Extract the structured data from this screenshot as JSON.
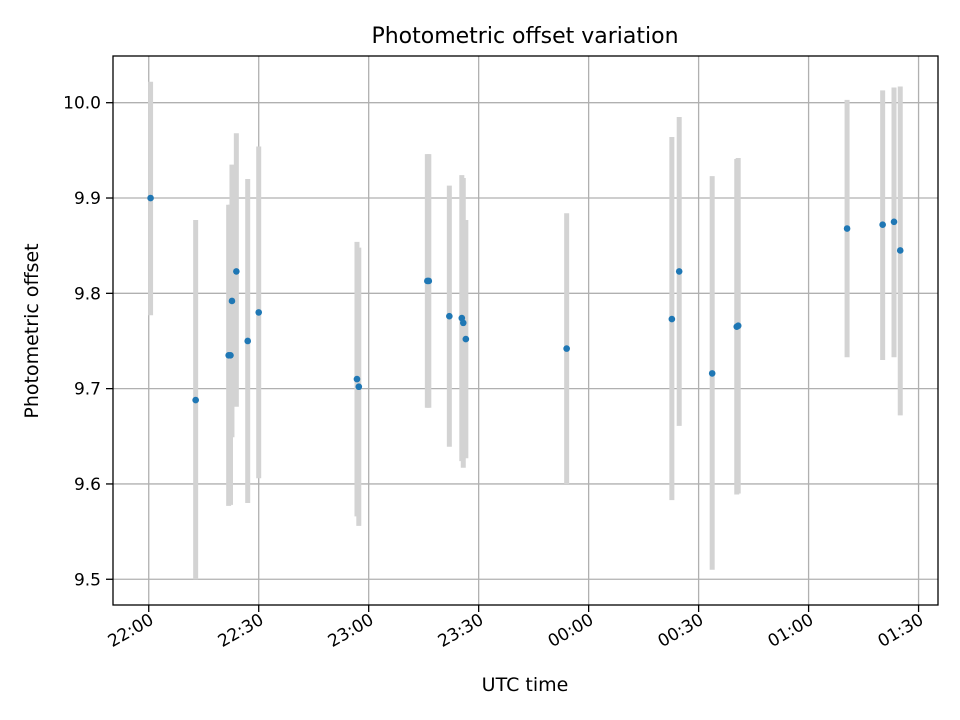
{
  "chart_data": {
    "type": "scatter",
    "title": "Photometric offset variation",
    "xlabel": "UTC time",
    "ylabel": "Photometric offset",
    "x_ticks": [
      "22:00",
      "22:30",
      "23:00",
      "23:30",
      "00:00",
      "00:30",
      "01:00",
      "01:30"
    ],
    "x_tick_values": [
      0,
      30,
      60,
      90,
      120,
      150,
      180,
      210
    ],
    "xlim": [
      -9.75,
      215.3
    ],
    "y_ticks": [
      "9.5",
      "9.6",
      "9.7",
      "9.8",
      "9.9",
      "10.0"
    ],
    "y_tick_values": [
      9.5,
      9.6,
      9.7,
      9.8,
      9.9,
      10.0
    ],
    "ylim": [
      9.473,
      10.049
    ],
    "grid": true,
    "colors": {
      "point": "#1f77b4",
      "errorbar": "#d3d3d3",
      "grid": "#b0b0b0",
      "axes": "#000000"
    },
    "points": [
      {
        "x": 0.5,
        "y": 9.9,
        "yerr_low": 9.777,
        "yerr_high": 10.022
      },
      {
        "x": 12.8,
        "y": 9.688,
        "yerr_low": 9.5,
        "yerr_high": 9.877
      },
      {
        "x": 21.8,
        "y": 9.735,
        "yerr_low": 9.577,
        "yerr_high": 9.893
      },
      {
        "x": 22.3,
        "y": 9.735,
        "yerr_low": 9.578,
        "yerr_high": 9.893
      },
      {
        "x": 22.7,
        "y": 9.792,
        "yerr_low": 9.649,
        "yerr_high": 9.935
      },
      {
        "x": 23.9,
        "y": 9.823,
        "yerr_low": 9.681,
        "yerr_high": 9.968
      },
      {
        "x": 27.0,
        "y": 9.75,
        "yerr_low": 9.58,
        "yerr_high": 9.92
      },
      {
        "x": 30.0,
        "y": 9.78,
        "yerr_low": 9.606,
        "yerr_high": 9.954
      },
      {
        "x": 56.8,
        "y": 9.71,
        "yerr_low": 9.566,
        "yerr_high": 9.854
      },
      {
        "x": 57.3,
        "y": 9.702,
        "yerr_low": 9.556,
        "yerr_high": 9.848
      },
      {
        "x": 76.0,
        "y": 9.813,
        "yerr_low": 9.68,
        "yerr_high": 9.946
      },
      {
        "x": 76.4,
        "y": 9.813,
        "yerr_low": 9.68,
        "yerr_high": 9.946
      },
      {
        "x": 82.0,
        "y": 9.776,
        "yerr_low": 9.639,
        "yerr_high": 9.913
      },
      {
        "x": 85.4,
        "y": 9.774,
        "yerr_low": 9.624,
        "yerr_high": 9.924
      },
      {
        "x": 85.8,
        "y": 9.769,
        "yerr_low": 9.617,
        "yerr_high": 9.921
      },
      {
        "x": 86.5,
        "y": 9.752,
        "yerr_low": 9.627,
        "yerr_high": 9.877
      },
      {
        "x": 114.0,
        "y": 9.742,
        "yerr_low": 9.6,
        "yerr_high": 9.884
      },
      {
        "x": 142.7,
        "y": 9.773,
        "yerr_low": 9.583,
        "yerr_high": 9.964
      },
      {
        "x": 144.7,
        "y": 9.823,
        "yerr_low": 9.661,
        "yerr_high": 9.985
      },
      {
        "x": 153.7,
        "y": 9.716,
        "yerr_low": 9.51,
        "yerr_high": 9.923
      },
      {
        "x": 160.4,
        "y": 9.765,
        "yerr_low": 9.589,
        "yerr_high": 9.941
      },
      {
        "x": 160.8,
        "y": 9.766,
        "yerr_low": 9.59,
        "yerr_high": 9.942
      },
      {
        "x": 190.5,
        "y": 9.868,
        "yerr_low": 9.733,
        "yerr_high": 10.003
      },
      {
        "x": 200.2,
        "y": 9.872,
        "yerr_low": 9.73,
        "yerr_high": 10.013
      },
      {
        "x": 203.3,
        "y": 9.875,
        "yerr_low": 9.733,
        "yerr_high": 10.016
      },
      {
        "x": 205.0,
        "y": 9.845,
        "yerr_low": 9.672,
        "yerr_high": 10.017
      }
    ]
  }
}
